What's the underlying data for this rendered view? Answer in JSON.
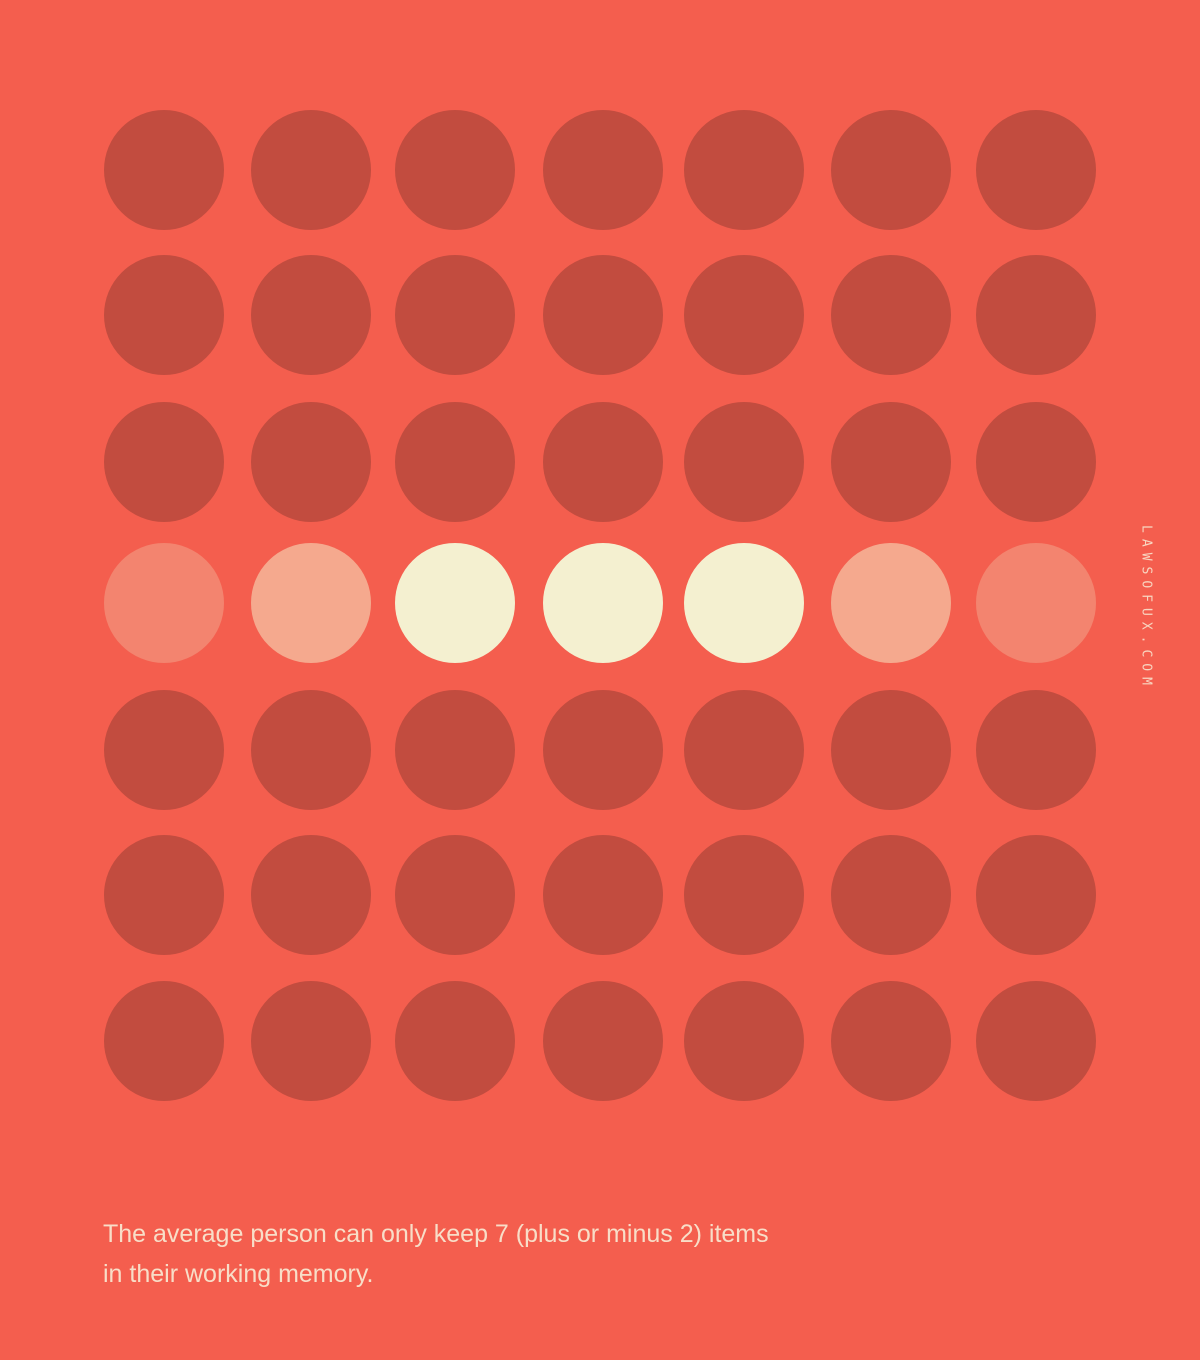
{
  "site_label": "LAWSOFUX.COM",
  "caption": {
    "line1": "The average person can only keep 7 (plus or minus 2) items",
    "line2": "in their working memory."
  },
  "colors": {
    "background": "#F45E4E",
    "dot_default": "#C24C3F",
    "dot_outer": "#F3846F",
    "dot_inner": "#F5A98E",
    "dot_highlight": "#F4F0D0"
  },
  "grid": {
    "rows": 7,
    "cols": 7,
    "highlight_row": 4,
    "highlight_row_levels": [
      "outer",
      "inner",
      "highlight",
      "highlight",
      "highlight",
      "inner",
      "outer"
    ]
  }
}
